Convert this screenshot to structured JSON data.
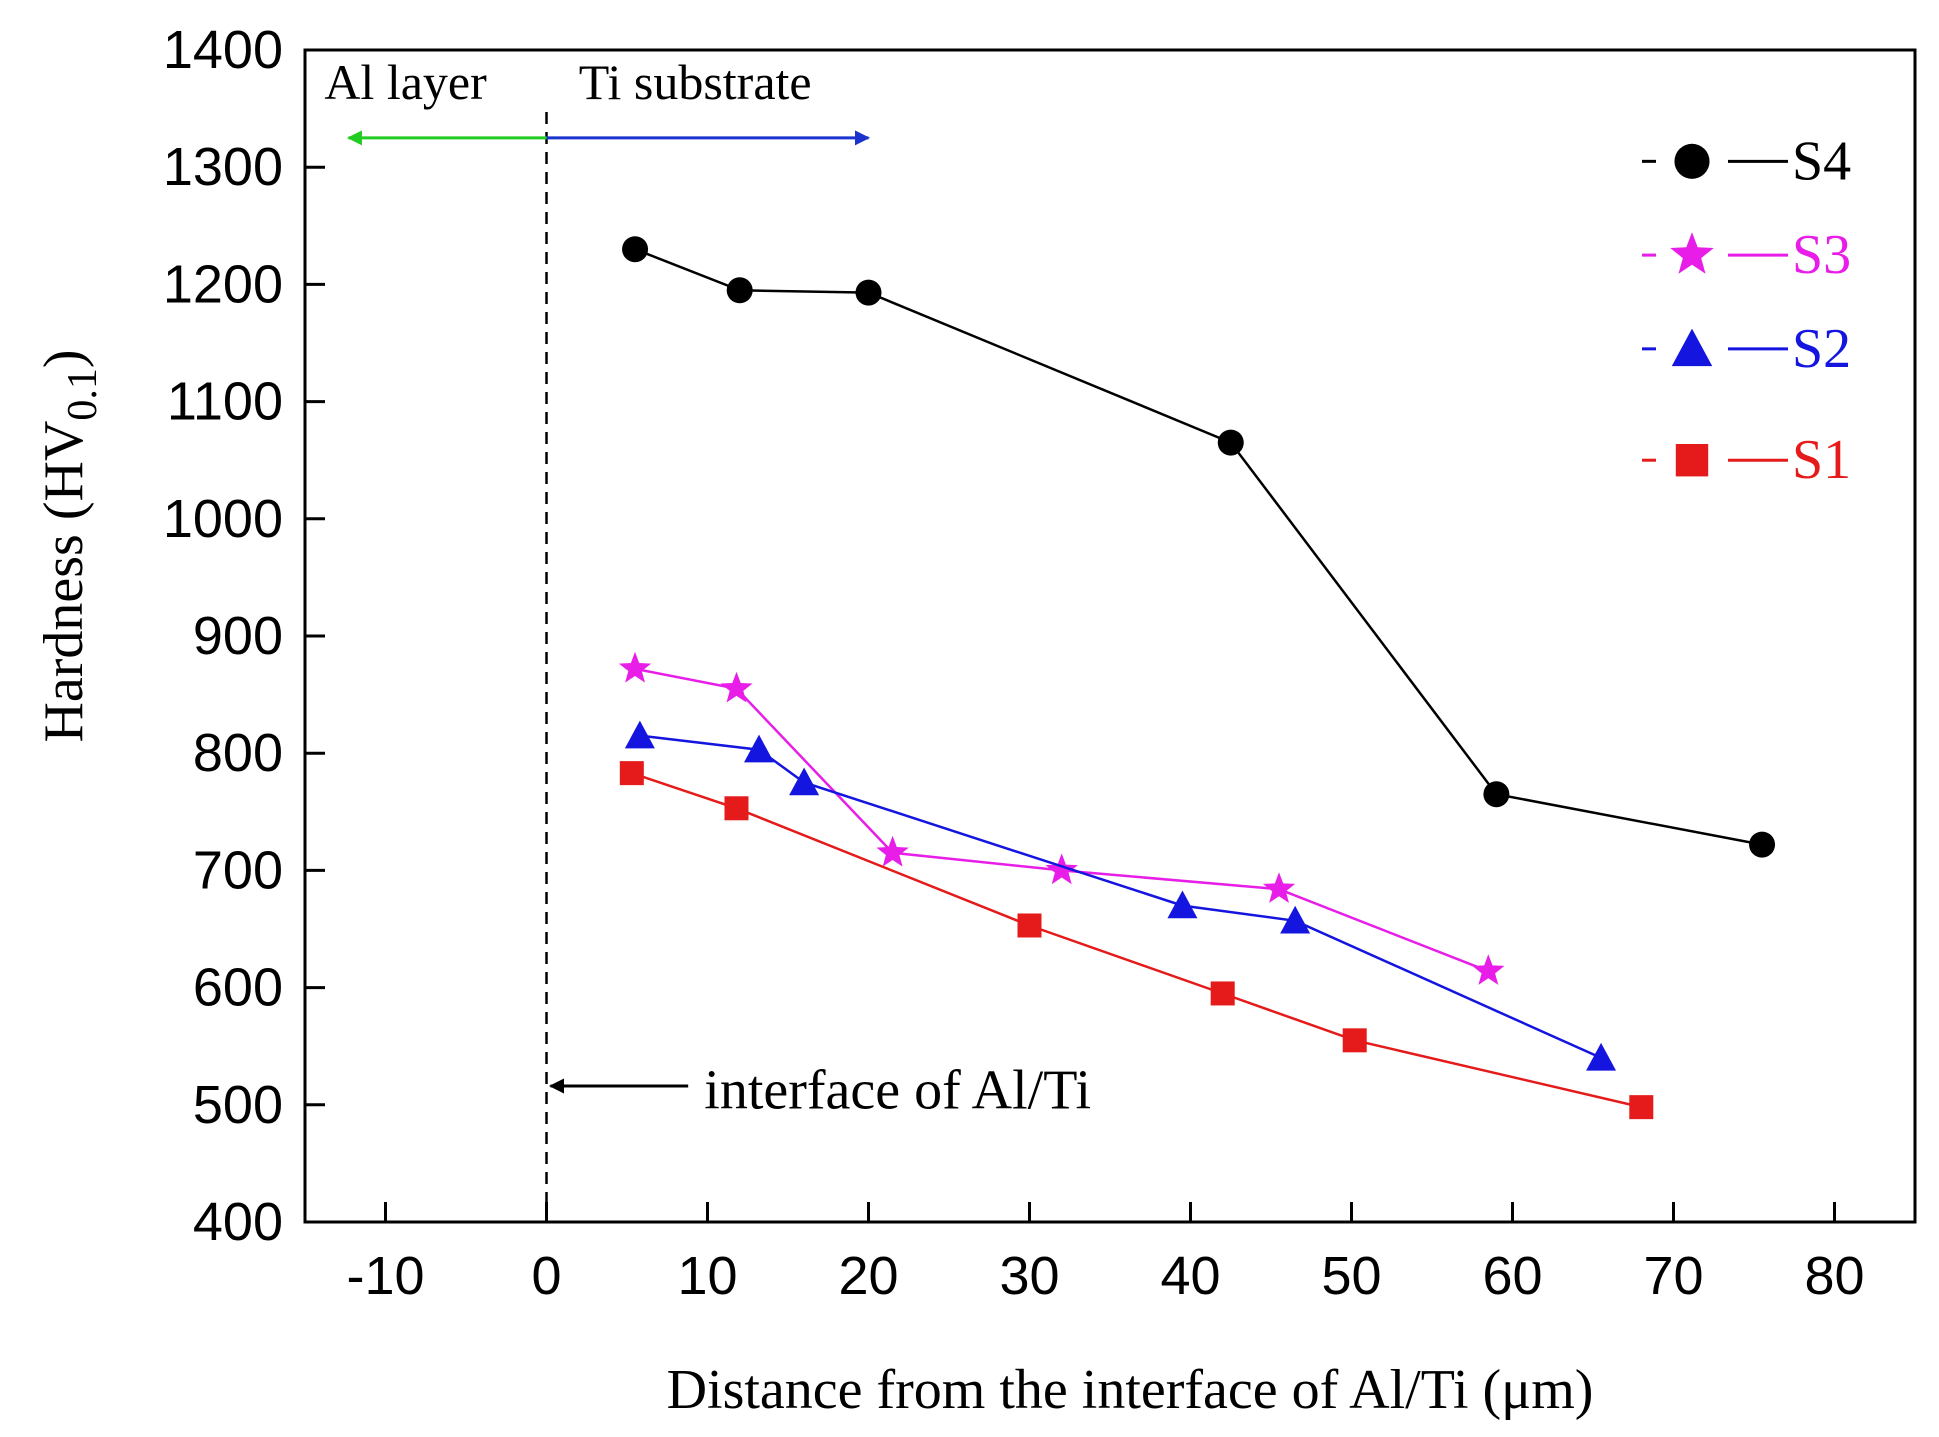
{
  "chart_data": {
    "type": "line",
    "title": "",
    "xlabel": "Distance from the interface of Al/Ti (μm)",
    "ylabel_main": "Hardness (HV",
    "ylabel_sub": "0.1",
    "ylabel_close": ")",
    "xlim": [
      -15,
      85
    ],
    "ylim": [
      400,
      1400
    ],
    "xticks": [
      -10,
      0,
      10,
      20,
      30,
      40,
      50,
      60,
      70,
      80
    ],
    "yticks": [
      400,
      500,
      600,
      700,
      800,
      900,
      1000,
      1100,
      1200,
      1300,
      1400
    ],
    "legend_position": "top-right",
    "series": [
      {
        "name": "S4",
        "legend_label": "S4",
        "color": "#000000",
        "marker": "circle",
        "x": [
          5.5,
          12,
          20,
          42.5,
          59,
          75.5
        ],
        "y": [
          1230,
          1195,
          1193,
          1065,
          765,
          722
        ]
      },
      {
        "name": "S3",
        "legend_label": "S3",
        "color": "#e81ee8",
        "marker": "star",
        "x": [
          5.5,
          11.8,
          21.5,
          32,
          45.5,
          58.5
        ],
        "y": [
          872,
          855,
          715,
          700,
          684,
          614
        ]
      },
      {
        "name": "S2",
        "legend_label": "S2",
        "color": "#1515e0",
        "marker": "triangle",
        "x": [
          5.8,
          13.2,
          16,
          39.5,
          46.5,
          65.5
        ],
        "y": [
          815,
          803,
          775,
          670,
          657,
          540
        ]
      },
      {
        "name": "S1",
        "legend_label": "S1",
        "color": "#e51b1b",
        "marker": "square",
        "x": [
          5.3,
          11.8,
          30,
          42,
          50.2,
          68
        ],
        "y": [
          783,
          753,
          653,
          595,
          555,
          498
        ]
      }
    ],
    "annotations": {
      "al_layer": "Al layer",
      "ti_substrate": "Ti substrate",
      "interface": "interface of Al/Ti",
      "al_arrow_color": "#22cc22",
      "ti_arrow_color": "#1a33cc"
    }
  }
}
